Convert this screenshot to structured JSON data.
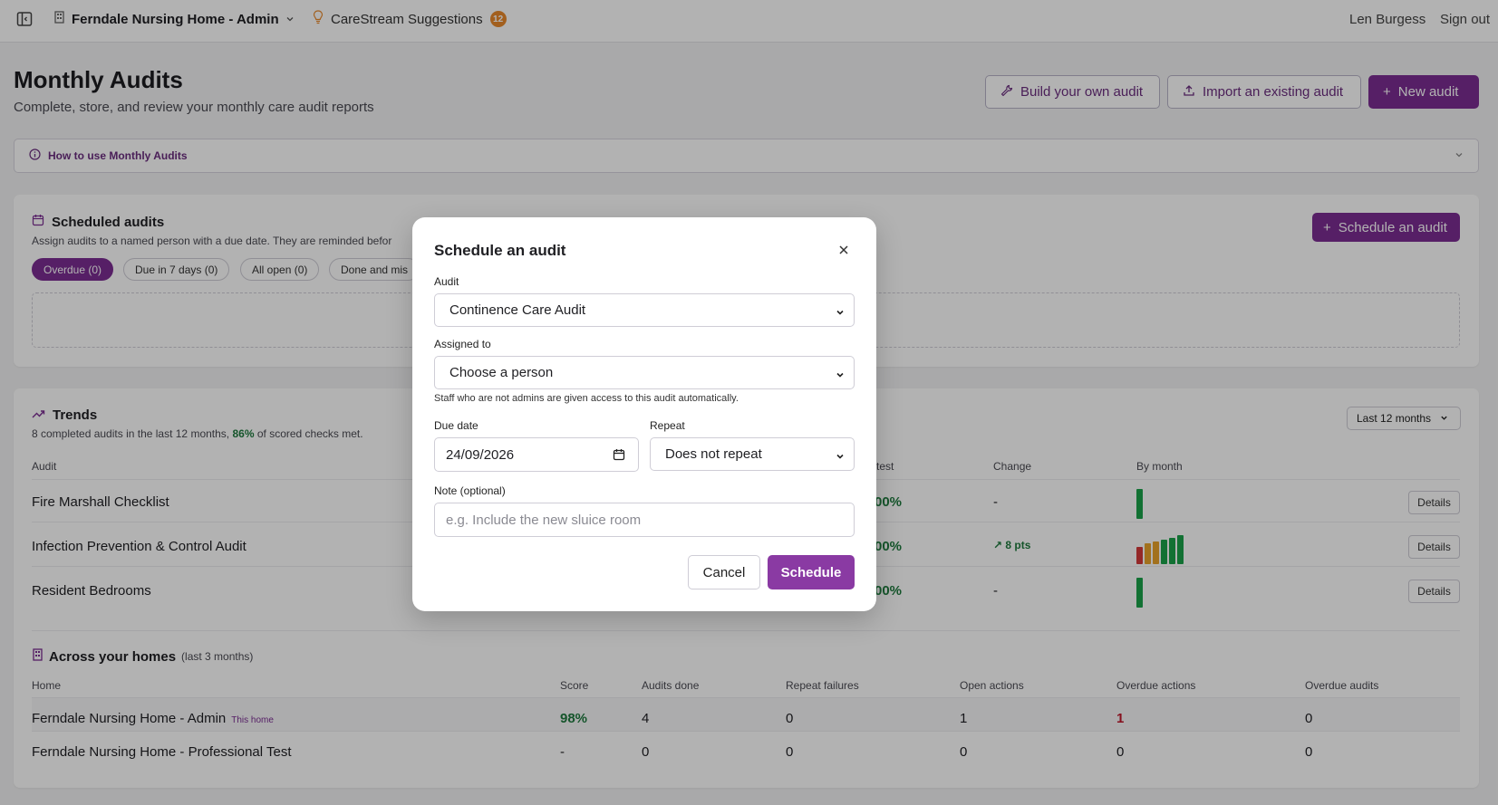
{
  "topbar": {
    "home_name": "Ferndale Nursing Home - Admin",
    "suggestions_label": "CareStream Suggestions",
    "suggestions_count": "12",
    "user_name": "Len Burgess",
    "signout_label": "Sign out"
  },
  "header": {
    "title": "Monthly Audits",
    "subtitle": "Complete, store, and review your monthly care audit reports",
    "build_label": "Build your own audit",
    "import_label": "Import an existing audit",
    "new_label": "New audit"
  },
  "howto": {
    "label": "How to use Monthly Audits"
  },
  "scheduled": {
    "title": "Scheduled audits",
    "desc": "Assign audits to a named person with a due date. They are reminded befor",
    "schedule_button": "Schedule an audit",
    "filters": [
      "Overdue (0)",
      "Due in 7 days (0)",
      "All open (0)",
      "Done and mis"
    ]
  },
  "trends": {
    "title": "Trends",
    "desc_pre": "8 completed audits in the last 12 months,",
    "desc_pct": "86%",
    "desc_post": "of scored checks met.",
    "range": "Last 12 months",
    "columns": {
      "audit": "Audit",
      "latest": "test",
      "change": "Change",
      "by_month": "By month"
    },
    "rows": [
      {
        "name": "Fire Marshall Checklist",
        "latest": "00%",
        "change": "-",
        "details": "Details"
      },
      {
        "name": "Infection Prevention & Control Audit",
        "latest": "00%",
        "change": "↗ 8 pts",
        "details": "Details"
      },
      {
        "name": "Resident Bedrooms",
        "latest": "00%",
        "change": "-",
        "details": "Details"
      }
    ]
  },
  "homes": {
    "title": "Across your homes",
    "period": "(last 3 months)",
    "columns": [
      "Home",
      "Score",
      "Audits done",
      "Repeat failures",
      "Open actions",
      "Overdue actions",
      "Overdue audits"
    ],
    "rows": [
      {
        "home": "Ferndale Nursing Home - Admin",
        "tag": "This home",
        "score": "98%",
        "audits_done": "4",
        "repeat_failures": "0",
        "open_actions": "1",
        "overdue_actions": "1",
        "overdue_audits": "0"
      },
      {
        "home": "Ferndale Nursing Home - Professional Test",
        "tag": "",
        "score": "-",
        "audits_done": "0",
        "repeat_failures": "0",
        "open_actions": "0",
        "overdue_actions": "0",
        "overdue_audits": "0"
      }
    ]
  },
  "modal": {
    "title": "Schedule an audit",
    "audit_label": "Audit",
    "audit_value": "Continence Care Audit",
    "assigned_label": "Assigned to",
    "assigned_value": "Choose a person",
    "hint": "Staff who are not admins are given access to this audit automatically.",
    "due_label": "Due date",
    "due_value": "24/09/2026",
    "repeat_label": "Repeat",
    "repeat_value": "Does not repeat",
    "note_label": "Note (optional)",
    "note_placeholder": "e.g. Include the new sluice room",
    "cancel_label": "Cancel",
    "schedule_label": "Schedule"
  },
  "colors": {
    "accent": "#7b2d92",
    "good": "#1f7a3e",
    "bad": "#c0182b",
    "badge": "#e8892b"
  }
}
